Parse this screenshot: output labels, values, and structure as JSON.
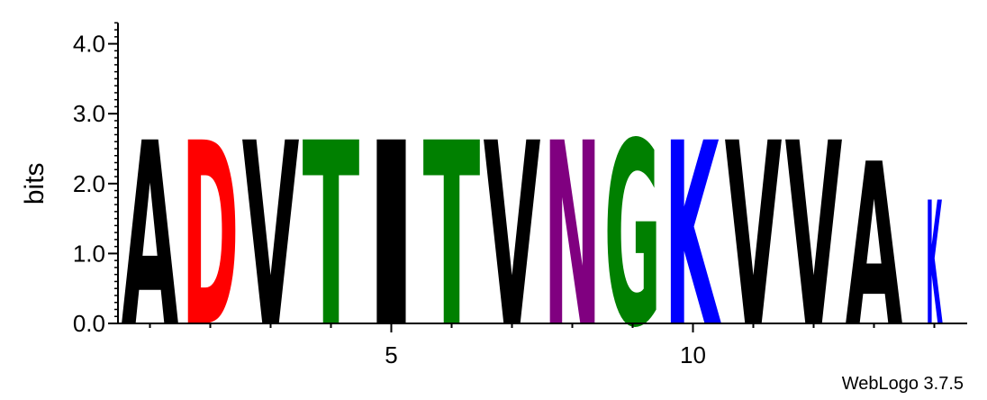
{
  "chart_data": {
    "type": "sequence-logo",
    "ylabel": "bits",
    "ylim": [
      0,
      4.3
    ],
    "y_ticks": [
      {
        "value": 0,
        "label": "0.0"
      },
      {
        "value": 1,
        "label": "1.0"
      },
      {
        "value": 2,
        "label": "2.0"
      },
      {
        "value": 3,
        "label": "3.0"
      },
      {
        "value": 4,
        "label": "4.0"
      }
    ],
    "xlim": [
      0.5,
      14.5
    ],
    "x_ticks": [
      {
        "value": 5,
        "label": "5"
      },
      {
        "value": 10,
        "label": "10"
      }
    ],
    "positions": [
      {
        "pos": 1,
        "letter": "A",
        "bits": 2.6,
        "color": "#000000"
      },
      {
        "pos": 2,
        "letter": "D",
        "bits": 2.6,
        "color": "#ff0000"
      },
      {
        "pos": 3,
        "letter": "V",
        "bits": 2.6,
        "color": "#000000"
      },
      {
        "pos": 4,
        "letter": "T",
        "bits": 2.6,
        "color": "#008000"
      },
      {
        "pos": 5,
        "letter": "I",
        "bits": 2.6,
        "color": "#000000"
      },
      {
        "pos": 6,
        "letter": "T",
        "bits": 2.6,
        "color": "#008000"
      },
      {
        "pos": 7,
        "letter": "V",
        "bits": 2.6,
        "color": "#000000"
      },
      {
        "pos": 8,
        "letter": "N",
        "bits": 2.6,
        "color": "#800080"
      },
      {
        "pos": 9,
        "letter": "G",
        "bits": 2.6,
        "color": "#008000"
      },
      {
        "pos": 10,
        "letter": "K",
        "bits": 2.6,
        "color": "#0000ff"
      },
      {
        "pos": 11,
        "letter": "V",
        "bits": 2.6,
        "color": "#000000"
      },
      {
        "pos": 12,
        "letter": "V",
        "bits": 2.6,
        "color": "#000000"
      },
      {
        "pos": 13,
        "letter": "A",
        "bits": 2.3,
        "color": "#000000"
      },
      {
        "pos": 14,
        "letter": "K",
        "bits": 1.75,
        "color": "#0000ff"
      }
    ]
  },
  "credit": "WebLogo 3.7.5"
}
